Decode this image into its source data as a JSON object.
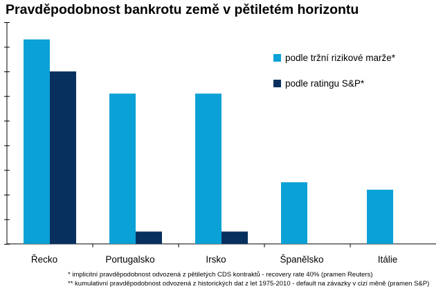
{
  "title": "Pravděpodobnost bankrotu země v pětiletém horizontu",
  "colors": {
    "series1": "#0aa1d6",
    "series2": "#08305e",
    "axis": "#000000"
  },
  "chart_data": {
    "type": "bar",
    "title": "Pravděpodobnost bankrotu země v pětiletém horizontu",
    "categories": [
      "Řecko",
      "Portugalsko",
      "Irsko",
      "Španělsko",
      "Itálie"
    ],
    "series": [
      {
        "name": "podle tržní rizikové marže*",
        "values": [
          83,
          61,
          61,
          25,
          22
        ]
      },
      {
        "name": "podle ratingu S&P*",
        "values": [
          70,
          5,
          5,
          0,
          0
        ]
      }
    ],
    "ylim": [
      0,
      90
    ],
    "grid": false,
    "legend_position": "top-right",
    "xlabel": "",
    "ylabel": ""
  },
  "footnotes": [
    "* implicitní pravděpodobnost odvozená z pětiletých CDS kontraktů - recovery rate 40% (pramen Reuters)",
    "** kumulativní pravděpodobnost odvozená z historických dat z let 1975-2010  - default na závazky v cizí měně (pramen S&P)"
  ]
}
